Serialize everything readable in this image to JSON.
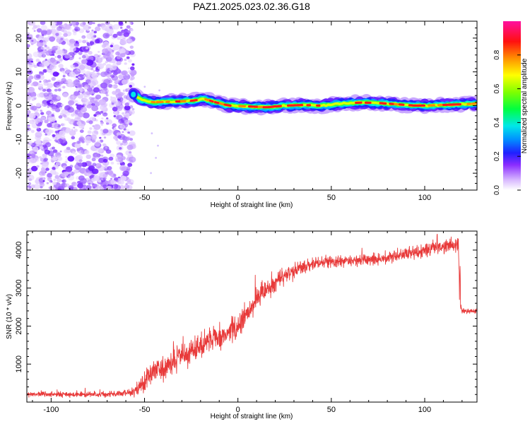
{
  "chart_data": [
    {
      "type": "heatmap",
      "title": "PAZ1.2025.023.02.36.G18",
      "xlabel": "Height of straight line (km)",
      "ylabel": "Frequency (Hz)",
      "xlim": [
        -113,
        128
      ],
      "ylim": [
        -25,
        25
      ],
      "xticks": [
        -100,
        -50,
        0,
        50,
        100
      ],
      "yticks": [
        -20,
        -10,
        0,
        10,
        20
      ],
      "colorbar": {
        "label": "Normalized spectral amplitude",
        "range": [
          0,
          1
        ],
        "ticks": [
          "0.0",
          "0.2",
          "0.4",
          "0.6",
          "0.8"
        ]
      },
      "ridge": [
        {
          "x": -56,
          "y": 3.5
        },
        {
          "x": -52,
          "y": 1.8
        },
        {
          "x": -45,
          "y": 1.0
        },
        {
          "x": -35,
          "y": 1.2
        },
        {
          "x": -25,
          "y": 1.4
        },
        {
          "x": -18,
          "y": 2.0
        },
        {
          "x": -12,
          "y": 1.0
        },
        {
          "x": -5,
          "y": 0.0
        },
        {
          "x": 5,
          "y": -0.2
        },
        {
          "x": 15,
          "y": -0.5
        },
        {
          "x": 25,
          "y": 0.0
        },
        {
          "x": 35,
          "y": 0.2
        },
        {
          "x": 45,
          "y": 0.0
        },
        {
          "x": 55,
          "y": 0.6
        },
        {
          "x": 65,
          "y": 0.9
        },
        {
          "x": 75,
          "y": 0.8
        },
        {
          "x": 85,
          "y": 0.4
        },
        {
          "x": 95,
          "y": 0.0
        },
        {
          "x": 105,
          "y": 0.1
        },
        {
          "x": 115,
          "y": 0.3
        },
        {
          "x": 128,
          "y": 0.6
        }
      ],
      "noise_region_x": [
        -113,
        -50
      ]
    },
    {
      "type": "line",
      "title": "",
      "xlabel": "Height of straight line (km)",
      "ylabel": "SNR (10 * v/v)",
      "xlim": [
        -113,
        128
      ],
      "ylim": [
        0,
        4500
      ],
      "xticks": [
        -100,
        -50,
        0,
        50,
        100
      ],
      "yticks": [
        1000,
        2000,
        3000,
        4000
      ],
      "series": [
        {
          "name": "SNR",
          "color": "#e83a3a",
          "x": [
            -113,
            -90,
            -70,
            -60,
            -55,
            -50,
            -45,
            -40,
            -30,
            -20,
            -10,
            0,
            10,
            20,
            30,
            40,
            50,
            60,
            70,
            80,
            90,
            100,
            110,
            118,
            119,
            120,
            128
          ],
          "y": [
            200,
            200,
            200,
            230,
            300,
            550,
            800,
            900,
            1200,
            1450,
            1700,
            2000,
            2700,
            3150,
            3450,
            3650,
            3700,
            3720,
            3750,
            3800,
            3900,
            4000,
            4100,
            4150,
            2600,
            2400,
            2400
          ],
          "noise": [
            60,
            60,
            60,
            70,
            120,
            250,
            300,
            320,
            320,
            300,
            280,
            280,
            280,
            220,
            180,
            150,
            150,
            150,
            150,
            150,
            160,
            170,
            170,
            170,
            80,
            60,
            60
          ]
        }
      ]
    }
  ],
  "colors": {
    "line": "#e83a3a",
    "axis": "#000000"
  }
}
